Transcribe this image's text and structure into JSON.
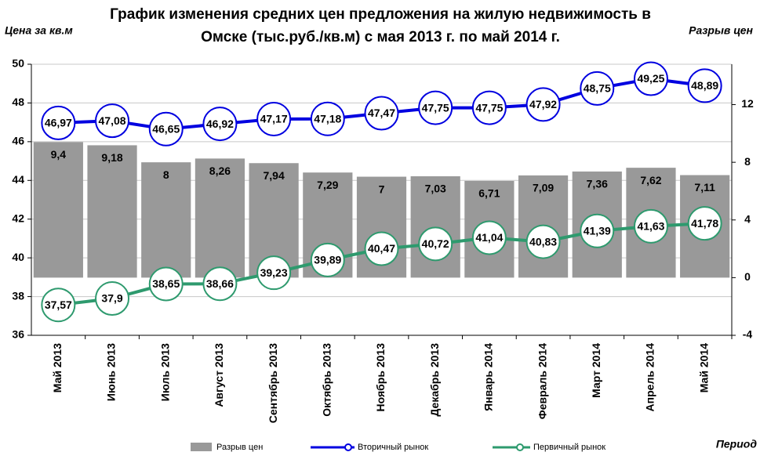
{
  "chart_data": {
    "type": "bar-line",
    "title": "График изменения средних цен предложения на жилую недвижимость в Омске (тыс.руб./кв.м) с мая 2013 г. по май 2014  г.",
    "y_label": "Цена за кв.м",
    "y2_label": "Разрыв цен",
    "x_label": "Период",
    "categories": [
      "Май 2013",
      "Июнь 2013",
      "Июль 2013",
      "Август 2013",
      "Сентябрь 2013",
      "Октябрь 2013",
      "Ноябрь 2013",
      "Декабрь 2013",
      "Январь 2014",
      "Февраль 2014",
      "Март 2014",
      "Апрель 2014",
      "Май 2014"
    ],
    "series": [
      {
        "name": "Разрыв цен",
        "type": "bar",
        "axis": "y2",
        "color": "#999999",
        "values": [
          9.4,
          9.18,
          8,
          8.26,
          7.94,
          7.29,
          7,
          7.03,
          6.71,
          7.09,
          7.36,
          7.62,
          7.11
        ],
        "value_labels": [
          "9,4",
          "9,18",
          "8",
          "8,26",
          "7,94",
          "7,29",
          "7",
          "7,03",
          "6,71",
          "7,09",
          "7,36",
          "7,62",
          "7,11"
        ]
      },
      {
        "name": "Вторичный рынок",
        "type": "line",
        "color": "#0000e0",
        "values": [
          46.97,
          47.08,
          46.65,
          46.92,
          47.17,
          47.18,
          47.47,
          47.75,
          47.75,
          47.92,
          48.75,
          49.25,
          48.89
        ],
        "value_labels": [
          "46,97",
          "47,08",
          "46,65",
          "46,92",
          "47,17",
          "47,18",
          "47,47",
          "47,75",
          "47,75",
          "47,92",
          "48,75",
          "49,25",
          "48,89"
        ]
      },
      {
        "name": "Первичный рынок",
        "type": "line",
        "color": "#2e9a6e",
        "values": [
          37.57,
          37.9,
          38.65,
          38.66,
          39.23,
          39.89,
          40.47,
          40.72,
          41.04,
          40.83,
          41.39,
          41.63,
          41.78
        ],
        "value_labels": [
          "37,57",
          "37,9",
          "38,65",
          "38,66",
          "39,23",
          "39,89",
          "40,47",
          "40,72",
          "41,04",
          "40,83",
          "41,39",
          "41,63",
          "41,78"
        ]
      }
    ],
    "ylim": [
      36,
      50
    ],
    "yticks": [
      36,
      38,
      40,
      42,
      44,
      46,
      48,
      50
    ],
    "y2lim": [
      -4,
      14.8
    ],
    "y2ticks": [
      -4,
      0,
      4,
      8,
      12
    ],
    "grid": true
  }
}
